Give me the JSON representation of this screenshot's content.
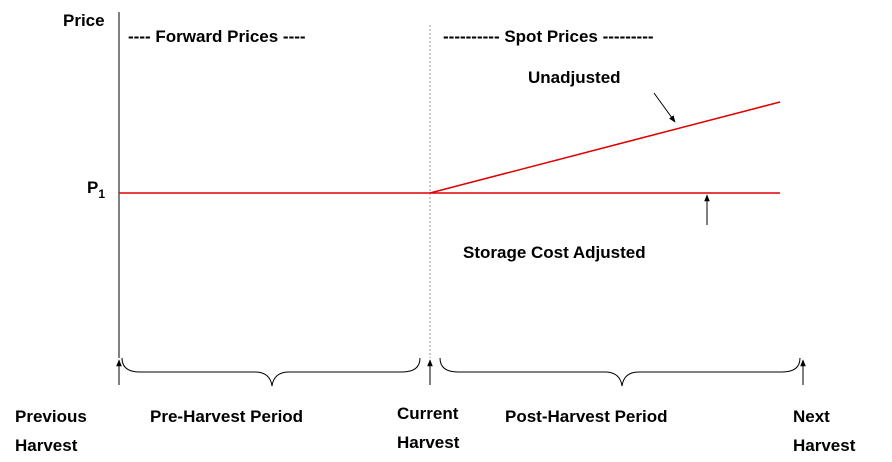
{
  "axis": {
    "y_label": "Price",
    "p1": {
      "main": "P",
      "sub": "1"
    }
  },
  "regions": {
    "forward": "---- Forward Prices ----",
    "spot": "---------- Spot Prices ---------"
  },
  "lines": {
    "unadjusted": "Unadjusted",
    "adjusted": "Storage Cost Adjusted"
  },
  "timeline": {
    "previous": [
      "Previous",
      "Harvest"
    ],
    "pre_period": "Pre-Harvest Period",
    "current": [
      "Current",
      "Harvest"
    ],
    "post_period": "Post-Harvest Period",
    "next": [
      "Next",
      "Harvest"
    ]
  }
}
